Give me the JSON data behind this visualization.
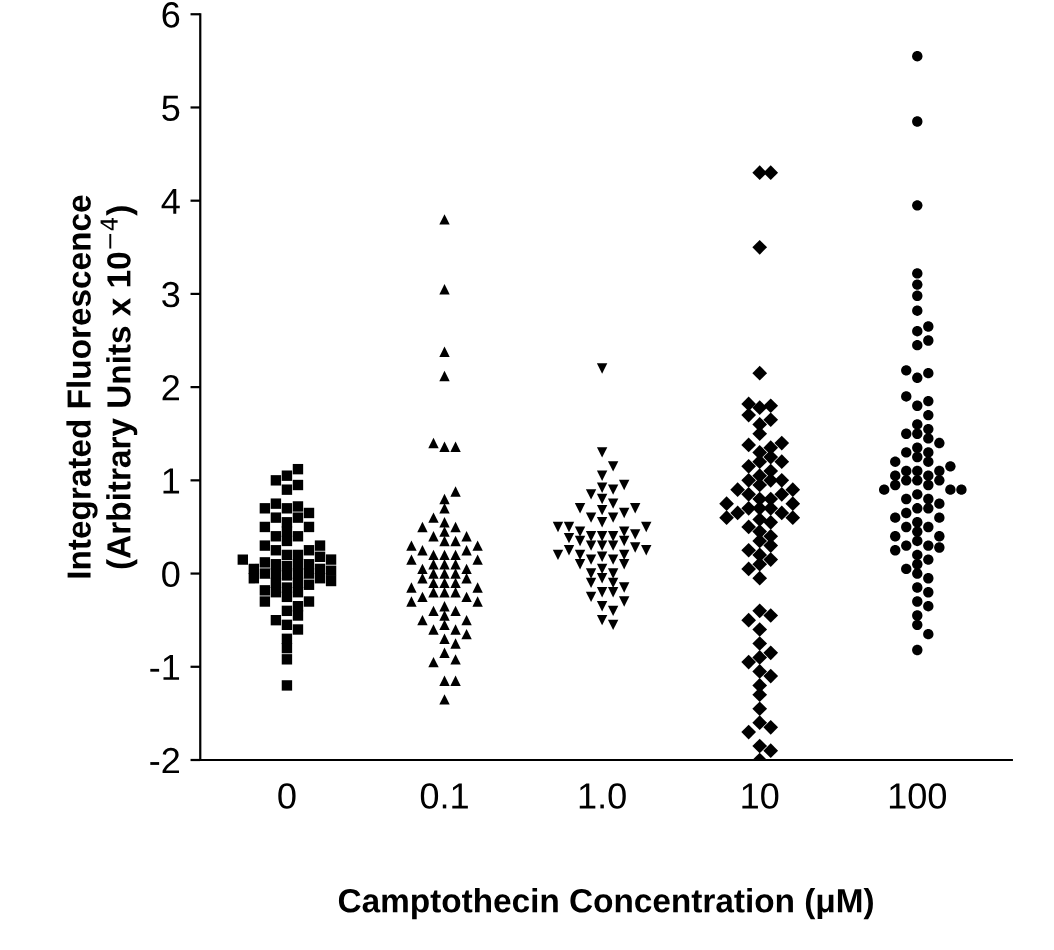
{
  "chart_data": {
    "type": "scatter",
    "xlabel": "Camptothecin Concentration (μM)",
    "ylabel": "Integrated Fluorescence\n(Arbitrary Units x 10$^{−4}$)",
    "categories": [
      "0",
      "0.1",
      "1.0",
      "10",
      "100"
    ],
    "ylim": [
      -2,
      6
    ],
    "yticks": [
      -2,
      -1,
      0,
      1,
      2,
      3,
      4,
      5,
      6
    ],
    "grid": false,
    "legend": false,
    "series": [
      {
        "color": "#000000",
        "marker": "square",
        "x": [
          "0",
          "0",
          "0",
          "0",
          "0",
          "0",
          "0",
          "0",
          "0",
          "0",
          "0",
          "0",
          "0",
          "0",
          "0",
          "0",
          "0",
          "0",
          "0",
          "0",
          "0",
          "0",
          "0",
          "0",
          "0",
          "0",
          "0",
          "0",
          "0",
          "0",
          "0",
          "0",
          "0",
          "0",
          "0",
          "0",
          "0",
          "0",
          "0",
          "0",
          "0",
          "0",
          "0",
          "0",
          "0",
          "0",
          "0",
          "0",
          "0",
          "0",
          "0",
          "0",
          "0",
          "0",
          "0",
          "0",
          "0",
          "0",
          "0",
          "0",
          "0",
          "0",
          "0",
          "0"
        ],
        "values": [
          1.12,
          1.05,
          1.0,
          0.95,
          0.9,
          0.75,
          0.72,
          0.7,
          0.65,
          0.6,
          0.55,
          0.5,
          0.45,
          0.4,
          0.35,
          0.3,
          0.25,
          0.2,
          0.18,
          0.15,
          0.12,
          0.1,
          0.08,
          0.05,
          0.03,
          0.0,
          0.0,
          -0.02,
          -0.05,
          -0.08,
          -0.1,
          -0.12,
          -0.15,
          -0.18,
          -0.2,
          -0.25,
          -0.3,
          -0.35,
          -0.4,
          -0.45,
          -0.5,
          -0.55,
          -0.6,
          -0.7,
          -0.8,
          -0.92,
          -1.2,
          0.1,
          0.0,
          -0.05,
          0.2,
          0.3,
          -0.1,
          0.05,
          0.15,
          -0.2,
          0.25,
          0.4,
          0.5,
          -0.3,
          0.6,
          0.7,
          0.0,
          0.1
        ]
      },
      {
        "color": "#000000",
        "marker": "triangle",
        "x": [
          "0.1",
          "0.1",
          "0.1",
          "0.1",
          "0.1",
          "0.1",
          "0.1",
          "0.1",
          "0.1",
          "0.1",
          "0.1",
          "0.1",
          "0.1",
          "0.1",
          "0.1",
          "0.1",
          "0.1",
          "0.1",
          "0.1",
          "0.1",
          "0.1",
          "0.1",
          "0.1",
          "0.1",
          "0.1",
          "0.1",
          "0.1",
          "0.1",
          "0.1",
          "0.1",
          "0.1",
          "0.1",
          "0.1",
          "0.1",
          "0.1",
          "0.1",
          "0.1",
          "0.1",
          "0.1",
          "0.1",
          "0.1",
          "0.1",
          "0.1",
          "0.1",
          "0.1",
          "0.1",
          "0.1",
          "0.1",
          "0.1",
          "0.1",
          "0.1",
          "0.1",
          "0.1",
          "0.1",
          "0.1",
          "0.1",
          "0.1",
          "0.1",
          "0.1",
          "0.1",
          "0.1",
          "0.1",
          "0.1",
          "0.1",
          "0.1",
          "0.1",
          "0.1",
          "0.1"
        ],
        "values": [
          3.8,
          3.05,
          2.38,
          2.12,
          1.4,
          1.36,
          1.36,
          0.88,
          0.8,
          0.7,
          0.6,
          0.55,
          0.5,
          0.45,
          0.4,
          0.35,
          0.3,
          0.25,
          0.2,
          0.15,
          0.1,
          0.05,
          0.0,
          -0.05,
          -0.1,
          -0.15,
          -0.2,
          -0.25,
          -0.3,
          -0.35,
          -0.4,
          -0.45,
          -0.5,
          -0.55,
          -0.6,
          -0.65,
          -0.7,
          -0.75,
          -0.85,
          -0.92,
          -0.95,
          -1.15,
          -1.15,
          -1.35,
          0.0,
          0.1,
          0.2,
          -0.1,
          -0.2,
          0.3,
          0.05,
          -0.05,
          0.15,
          -0.15,
          0.25,
          -0.25,
          0.4,
          0.5,
          -0.3,
          -0.4,
          0.0,
          0.1,
          -0.1,
          0.2,
          -0.2,
          0.35,
          -0.5,
          -0.6
        ]
      },
      {
        "color": "#000000",
        "marker": "triangle_down",
        "x": [
          "1.0",
          "1.0",
          "1.0",
          "1.0",
          "1.0",
          "1.0",
          "1.0",
          "1.0",
          "1.0",
          "1.0",
          "1.0",
          "1.0",
          "1.0",
          "1.0",
          "1.0",
          "1.0",
          "1.0",
          "1.0",
          "1.0",
          "1.0",
          "1.0",
          "1.0",
          "1.0",
          "1.0",
          "1.0",
          "1.0",
          "1.0",
          "1.0",
          "1.0",
          "1.0",
          "1.0",
          "1.0",
          "1.0",
          "1.0",
          "1.0",
          "1.0",
          "1.0",
          "1.0",
          "1.0",
          "1.0",
          "1.0",
          "1.0",
          "1.0",
          "1.0",
          "1.0",
          "1.0",
          "1.0",
          "1.0",
          "1.0",
          "1.0",
          "1.0",
          "1.0",
          "1.0",
          "1.0",
          "1.0",
          "1.0",
          "1.0",
          "1.0"
        ],
        "values": [
          2.2,
          1.3,
          1.15,
          1.05,
          0.95,
          0.92,
          0.9,
          0.85,
          0.8,
          0.75,
          0.7,
          0.68,
          0.65,
          0.6,
          0.55,
          0.5,
          0.45,
          0.42,
          0.4,
          0.38,
          0.35,
          0.3,
          0.28,
          0.25,
          0.2,
          0.18,
          0.15,
          0.1,
          0.05,
          0.0,
          -0.05,
          -0.1,
          -0.15,
          -0.2,
          -0.25,
          -0.3,
          -0.35,
          -0.4,
          -0.5,
          -0.55,
          0.3,
          0.4,
          0.5,
          0.2,
          0.1,
          0.35,
          0.45,
          0.25,
          0.6,
          0.15,
          0.0,
          -0.1,
          0.3,
          0.4,
          0.5,
          0.2,
          0.7,
          -0.2
        ]
      },
      {
        "color": "#000000",
        "marker": "diamond",
        "x": [
          "10",
          "10",
          "10",
          "10",
          "10",
          "10",
          "10",
          "10",
          "10",
          "10",
          "10",
          "10",
          "10",
          "10",
          "10",
          "10",
          "10",
          "10",
          "10",
          "10",
          "10",
          "10",
          "10",
          "10",
          "10",
          "10",
          "10",
          "10",
          "10",
          "10",
          "10",
          "10",
          "10",
          "10",
          "10",
          "10",
          "10",
          "10",
          "10",
          "10",
          "10",
          "10",
          "10",
          "10",
          "10",
          "10",
          "10",
          "10",
          "10",
          "10",
          "10",
          "10",
          "10",
          "10",
          "10",
          "10",
          "10",
          "10",
          "10",
          "10",
          "10",
          "10",
          "10",
          "10",
          "10",
          "10",
          "10",
          "10",
          "10",
          "10",
          "10",
          "10"
        ],
        "values": [
          4.3,
          4.3,
          3.5,
          2.15,
          1.82,
          1.8,
          1.78,
          1.7,
          1.65,
          1.6,
          1.5,
          1.4,
          1.38,
          1.35,
          1.3,
          1.25,
          1.2,
          1.15,
          1.1,
          1.05,
          1.0,
          0.95,
          0.9,
          0.85,
          0.8,
          0.75,
          0.7,
          0.65,
          0.6,
          0.58,
          0.55,
          0.5,
          0.45,
          0.4,
          0.35,
          0.3,
          0.25,
          0.2,
          0.15,
          0.1,
          0.05,
          -0.05,
          -0.4,
          -0.45,
          -0.5,
          -0.6,
          -0.75,
          -0.85,
          -0.9,
          -0.95,
          -1.05,
          -1.1,
          -1.2,
          -1.3,
          -1.45,
          -1.6,
          -1.65,
          -1.7,
          -1.85,
          -1.9,
          -2.0,
          1.0,
          0.9,
          0.8,
          0.7,
          0.6,
          0.75,
          0.85,
          0.65,
          1.2,
          1.0,
          0.7
        ]
      },
      {
        "color": "#000000",
        "marker": "circle",
        "x": [
          "100",
          "100",
          "100",
          "100",
          "100",
          "100",
          "100",
          "100",
          "100",
          "100",
          "100",
          "100",
          "100",
          "100",
          "100",
          "100",
          "100",
          "100",
          "100",
          "100",
          "100",
          "100",
          "100",
          "100",
          "100",
          "100",
          "100",
          "100",
          "100",
          "100",
          "100",
          "100",
          "100",
          "100",
          "100",
          "100",
          "100",
          "100",
          "100",
          "100",
          "100",
          "100",
          "100",
          "100",
          "100",
          "100",
          "100",
          "100",
          "100",
          "100",
          "100",
          "100",
          "100",
          "100",
          "100",
          "100",
          "100",
          "100",
          "100",
          "100",
          "100",
          "100",
          "100",
          "100",
          "100",
          "100",
          "100",
          "100",
          "100",
          "100",
          "100",
          "100",
          "100",
          "100",
          "100",
          "100",
          "100",
          "100"
        ],
        "values": [
          5.55,
          4.85,
          3.95,
          3.22,
          3.1,
          2.98,
          2.82,
          2.65,
          2.6,
          2.5,
          2.45,
          2.18,
          2.15,
          2.1,
          1.9,
          1.85,
          1.8,
          1.7,
          1.6,
          1.55,
          1.5,
          1.45,
          1.4,
          1.35,
          1.3,
          1.25,
          1.2,
          1.15,
          1.1,
          1.05,
          1.0,
          0.95,
          0.9,
          0.85,
          0.8,
          0.75,
          0.7,
          0.65,
          0.6,
          0.55,
          0.5,
          0.45,
          0.4,
          0.35,
          0.3,
          0.28,
          0.25,
          0.2,
          0.15,
          0.1,
          0.05,
          0.0,
          -0.05,
          -0.15,
          -0.2,
          -0.3,
          -0.35,
          -0.45,
          -0.55,
          -0.65,
          -0.82,
          1.0,
          0.9,
          1.1,
          0.8,
          1.2,
          0.7,
          1.3,
          0.6,
          0.5,
          1.0,
          0.9,
          1.1,
          0.3,
          0.4,
          1.5,
          0.95,
          1.05
        ]
      }
    ]
  }
}
